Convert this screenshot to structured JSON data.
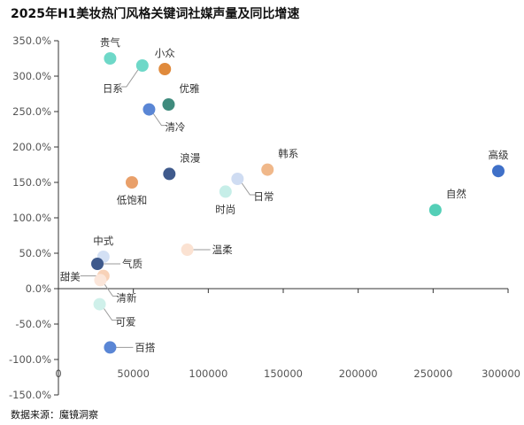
{
  "title": "2025年H1美妆热门风格关键词社媒声量及同比增速",
  "source": "数据来源：魔镜洞察",
  "chart_data": {
    "type": "scatter",
    "title": "2025年H1美妆热门风格关键词社媒声量及同比增速",
    "xlabel": "",
    "ylabel": "",
    "xlim": [
      0,
      300000
    ],
    "ylim": [
      -150,
      350
    ],
    "x_ticks": [
      {
        "value": 0,
        "label": "0"
      },
      {
        "value": 50000,
        "label": "50000"
      },
      {
        "value": 100000,
        "label": "100000"
      },
      {
        "value": 150000,
        "label": "150000"
      },
      {
        "value": 200000,
        "label": "200000"
      },
      {
        "value": 250000,
        "label": "250000"
      },
      {
        "value": 300000,
        "label": "300000"
      }
    ],
    "y_ticks": [
      {
        "value": 350,
        "label": "350.0%"
      },
      {
        "value": 300,
        "label": "300.0%"
      },
      {
        "value": 250,
        "label": "250.0%"
      },
      {
        "value": 200,
        "label": "200.0%"
      },
      {
        "value": 150,
        "label": "150.0%"
      },
      {
        "value": 100,
        "label": "100.0%"
      },
      {
        "value": 50,
        "label": "50.0%"
      },
      {
        "value": 0,
        "label": "0.0%"
      },
      {
        "value": -50,
        "label": "-50.0%"
      },
      {
        "value": -100,
        "label": "-100.0%"
      },
      {
        "value": -150,
        "label": "-150.0%"
      }
    ],
    "grid": false,
    "points": [
      {
        "label": "贵气",
        "x": 34500,
        "y": 325,
        "color": "#6ed8c8",
        "label_pos": "above"
      },
      {
        "label": "日系",
        "x": 56000,
        "y": 315,
        "color": "#6ed8c8",
        "label_pos": "below-left"
      },
      {
        "label": "小众",
        "x": 71000,
        "y": 310,
        "color": "#e08a3c",
        "label_pos": "above"
      },
      {
        "label": "优雅",
        "x": 73500,
        "y": 260,
        "color": "#3f8b7d",
        "label_pos": "above-right"
      },
      {
        "label": "清冷",
        "x": 60500,
        "y": 253,
        "color": "#5a86d5",
        "label_pos": "below-right"
      },
      {
        "label": "浪漫",
        "x": 74000,
        "y": 162,
        "color": "#3f5a8c",
        "label_pos": "above-right"
      },
      {
        "label": "低饱和",
        "x": 49000,
        "y": 150,
        "color": "#e9a06a",
        "label_pos": "below"
      },
      {
        "label": "韩系",
        "x": 139500,
        "y": 168,
        "color": "#f0b88a",
        "label_pos": "above-right"
      },
      {
        "label": "日常",
        "x": 119500,
        "y": 155,
        "color": "#cfdcf2",
        "label_pos": "below-right"
      },
      {
        "label": "时尚",
        "x": 111500,
        "y": 137,
        "color": "#c6eee8",
        "label_pos": "below"
      },
      {
        "label": "高级",
        "x": 293500,
        "y": 166,
        "color": "#3f70c8",
        "label_pos": "above"
      },
      {
        "label": "自然",
        "x": 251500,
        "y": 111,
        "color": "#54cfb7",
        "label_pos": "above-right"
      },
      {
        "label": "中式",
        "x": 30000,
        "y": 45,
        "color": "#d3e0f4",
        "label_pos": "above"
      },
      {
        "label": "温柔",
        "x": 86000,
        "y": 55,
        "color": "#fbe2d2",
        "label_pos": "right"
      },
      {
        "label": "气质",
        "x": 26000,
        "y": 35,
        "color": "#3f5a8c",
        "label_pos": "right"
      },
      {
        "label": "甜美",
        "x": 30000,
        "y": 18,
        "color": "#f8d2b8",
        "label_pos": "left"
      },
      {
        "label": "清新",
        "x": 28000,
        "y": 12,
        "color": "#fbe6da",
        "label_pos": "below-right"
      },
      {
        "label": "可爱",
        "x": 27500,
        "y": -22,
        "color": "#cff0ea",
        "label_pos": "below-right"
      },
      {
        "label": "百搭",
        "x": 34500,
        "y": -83,
        "color": "#5a86d5",
        "label_pos": "right"
      }
    ]
  }
}
